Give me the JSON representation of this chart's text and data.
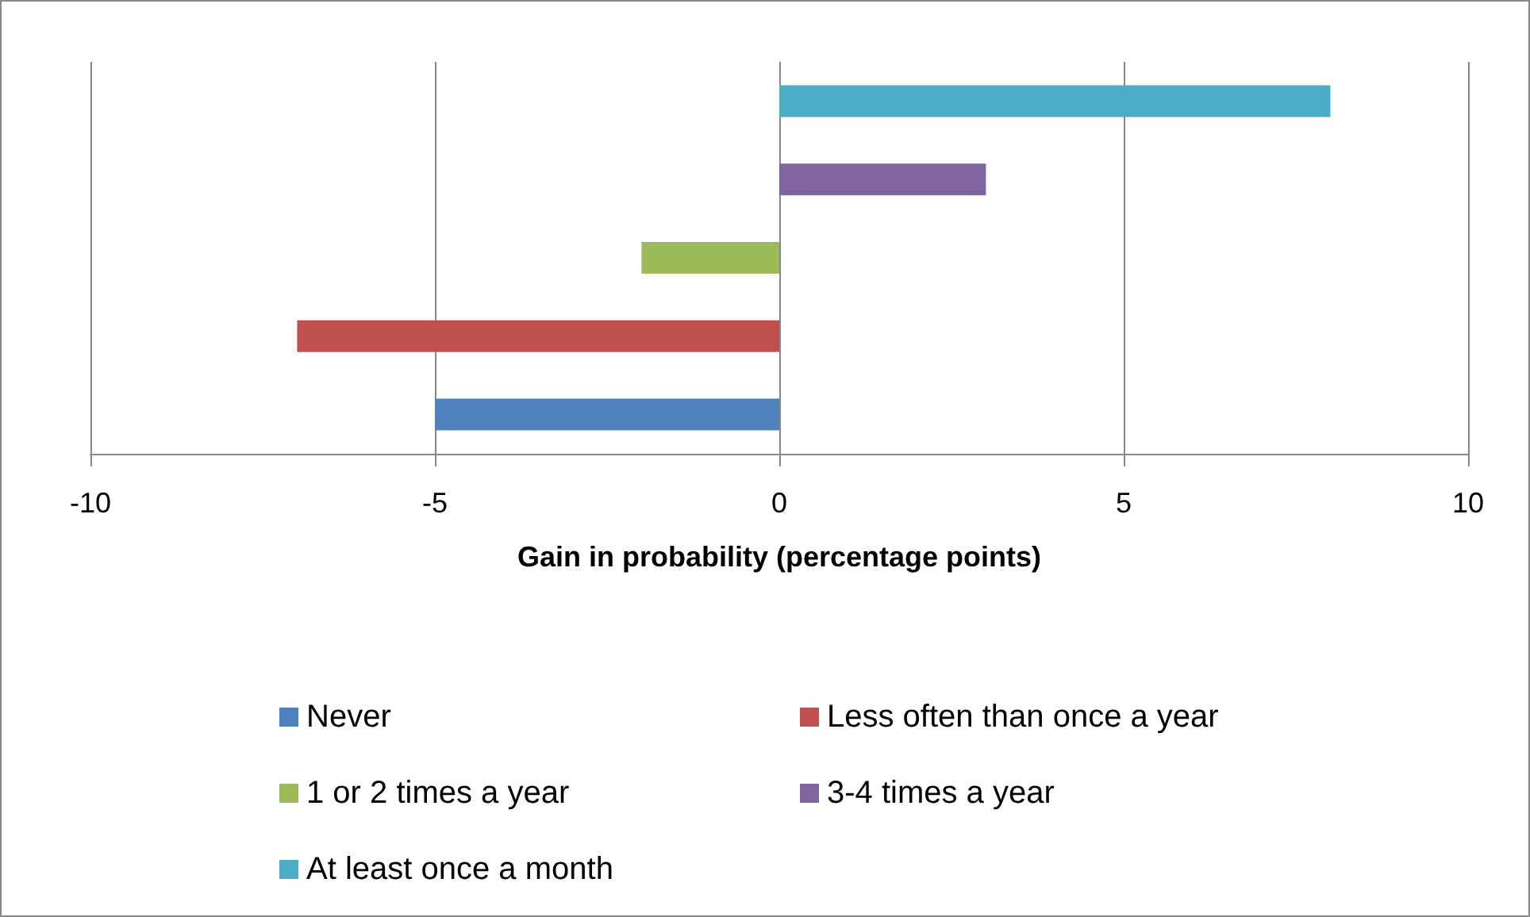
{
  "chart_data": {
    "type": "bar",
    "orientation": "horizontal",
    "xlabel": "Gain in probability (percentage points)",
    "categories": [
      null,
      null,
      null,
      null,
      null
    ],
    "series": [
      {
        "name": "Never",
        "color": "#4f81bd",
        "values": [
          null,
          null,
          null,
          null,
          -5
        ]
      },
      {
        "name": "Less often than once a year",
        "color": "#c0504d",
        "values": [
          null,
          null,
          null,
          -7,
          null
        ]
      },
      {
        "name": "1 or 2 times a year",
        "color": "#9bbb59",
        "values": [
          null,
          null,
          -2,
          null,
          null
        ]
      },
      {
        "name": "3-4 times a year",
        "color": "#8064a2",
        "values": [
          null,
          3,
          null,
          null,
          null
        ]
      },
      {
        "name": "At least once a month",
        "color": "#4bacc6",
        "values": [
          8,
          null,
          null,
          null,
          null
        ]
      }
    ],
    "xlim": [
      -10,
      10
    ],
    "xticks": [
      -10,
      -5,
      0,
      5,
      10
    ],
    "grid": "x",
    "legend": "bottom",
    "tick_labels": "x"
  }
}
